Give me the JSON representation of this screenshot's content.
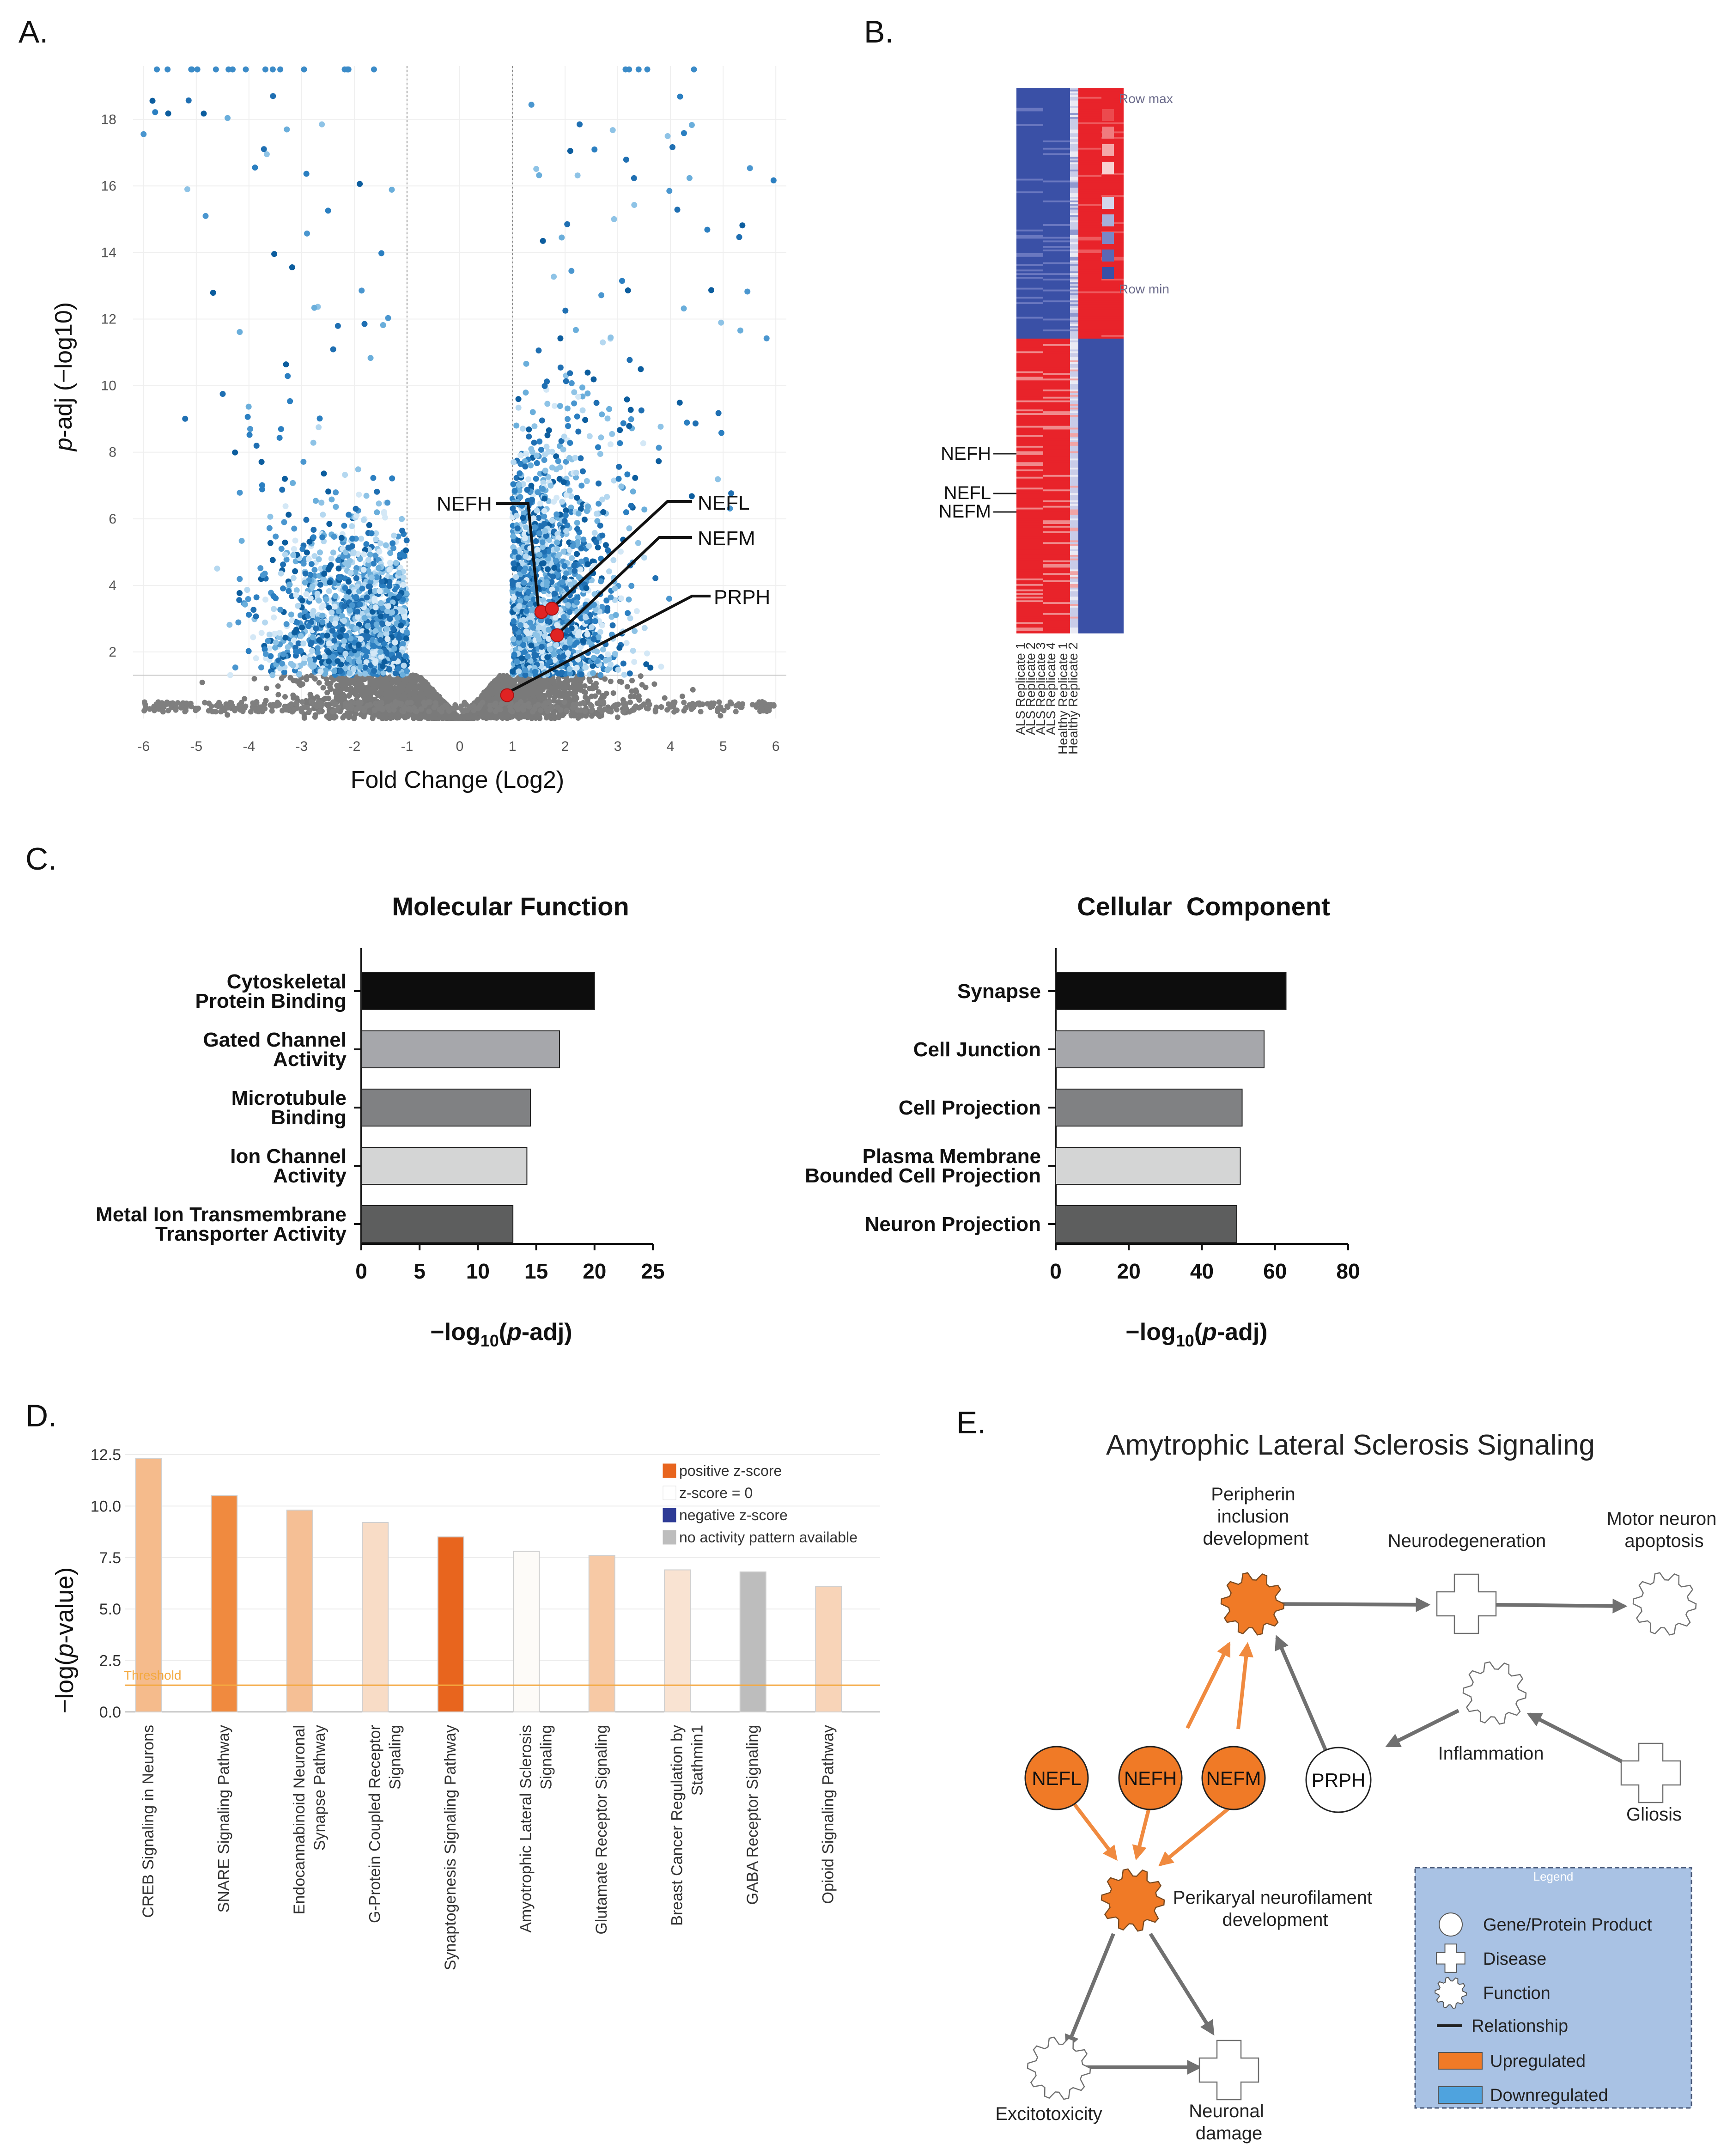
{
  "panel_labels": {
    "a": "A.",
    "b": "B.",
    "c": "C.",
    "d": "D.",
    "e": "E."
  },
  "colors": {
    "orange_dark": "#e8651e",
    "orange_mid": "#f08a3f",
    "orange_light": "#f5bb8c",
    "orange_pale": "#f8d6bb",
    "grey_bar": "#bdbdbd",
    "blue_point": "#2f7dbf",
    "grey_point": "#7a7a7a",
    "red_marker": "#e02323",
    "threshold": "#f4a940",
    "legend_bg": "#a9c2e4",
    "heat_red": "#e8232a",
    "heat_blue": "#3a50a6"
  },
  "chart_data": [
    {
      "id": "A",
      "type": "scatter",
      "title": "",
      "xlabel": "Fold Change (Log2)",
      "ylabel": "p-adj (−log10)",
      "ylabel_italic": "p",
      "ylabel_rest": "-adj (−log10)",
      "xlim": [
        -6.2,
        6.2
      ],
      "ylim": [
        0,
        19.6
      ],
      "xticks": [
        "-6",
        "-5",
        "-4",
        "-3",
        "-2",
        "-1",
        "0",
        "1",
        "2",
        "3",
        "4",
        "5",
        "6"
      ],
      "yticks": [
        "2",
        "4",
        "6",
        "8",
        "10",
        "12",
        "14",
        "16",
        "18"
      ],
      "vlines": [
        -1,
        1
      ],
      "hline": 1.3,
      "highlighted": [
        {
          "gene": "NEFH",
          "x": 1.55,
          "y": 3.2
        },
        {
          "gene": "NEFL",
          "x": 1.75,
          "y": 3.3
        },
        {
          "gene": "NEFM",
          "x": 1.85,
          "y": 2.5
        },
        {
          "gene": "PRPH",
          "x": 0.9,
          "y": 0.7
        }
      ]
    },
    {
      "id": "B",
      "type": "heatmap",
      "columns": [
        "ALS Replicate 1",
        "ALS Replicate 2",
        "ALS Replicate 3",
        "ALS Replicate 4",
        "Healthy Replicate 1",
        "Healthy Replicate 2"
      ],
      "row_labels": [
        "NEFH",
        "NEFL",
        "NEFM"
      ],
      "legend_max": "Row max",
      "legend_min": "Row min",
      "legend_swatches": [
        "#e8232a",
        "#ec4a4e",
        "#f07b7e",
        "#f4a6a8",
        "#f8d0d1",
        "#ffffff",
        "#d3d6ec",
        "#a7aed9",
        "#7b86c6",
        "#5a68b6",
        "#3a50a6"
      ]
    },
    {
      "id": "C1",
      "type": "bar",
      "orientation": "horizontal",
      "title": "Molecular Function",
      "categories": [
        [
          "Cytoskeletal",
          "Protein Binding"
        ],
        [
          "Gated Channel",
          "Activity"
        ],
        [
          "Microtubule",
          "Binding"
        ],
        [
          "Ion Channel",
          "Activity"
        ],
        [
          "Metal Ion Transmembrane",
          "Transporter Activity"
        ]
      ],
      "values": [
        20,
        17,
        14.5,
        14.2,
        13
      ],
      "bar_colors": [
        "#0d0d0d",
        "#a6a7ab",
        "#808183",
        "#d4d5d5",
        "#5d5e5e"
      ],
      "xlim": [
        0,
        25
      ],
      "xticks": [
        "0",
        "5",
        "10",
        "15",
        "20",
        "25"
      ],
      "xlabel_prefix": "−log",
      "xlabel_sub": "10",
      "xlabel_open": "(",
      "xlabel_italic": "p",
      "xlabel_rest": "-adj)"
    },
    {
      "id": "C2",
      "type": "bar",
      "orientation": "horizontal",
      "title": "Cellular  Component",
      "categories": [
        [
          "Synapse"
        ],
        [
          "Cell Junction"
        ],
        [
          "Cell Projection"
        ],
        [
          "Plasma Membrane",
          "Bounded Cell Projection"
        ],
        [
          "Neuron Projection"
        ]
      ],
      "values": [
        63,
        57,
        51,
        50.5,
        49.5
      ],
      "bar_colors": [
        "#0d0d0d",
        "#a6a7ab",
        "#808183",
        "#d4d5d5",
        "#5d5e5e"
      ],
      "xlim": [
        0,
        80
      ],
      "xticks": [
        "0",
        "20",
        "40",
        "60",
        "80"
      ],
      "xlabel_prefix": "−log",
      "xlabel_sub": "10",
      "xlabel_open": "(",
      "xlabel_italic": "p",
      "xlabel_rest": "-adj)"
    },
    {
      "id": "D",
      "type": "bar",
      "title": "",
      "ylabel_prefix": "−log(",
      "ylabel_italic": "p",
      "ylabel_rest": "-value)",
      "ylim": [
        0,
        12.5
      ],
      "yticks": [
        "0.0",
        "2.5",
        "5.0",
        "7.5",
        "10.0",
        "12.5"
      ],
      "threshold": 1.3,
      "threshold_label": "Threshold",
      "categories": [
        [
          "CREB Signaling in Neurons"
        ],
        [
          "SNARE Signaling Pathway"
        ],
        [
          "Endocannabinoid Neuronal",
          "Synapse Pathway"
        ],
        [
          "G-Protein Coupled Receptor",
          "Signaling"
        ],
        [
          "Synaptogenesis Signaling Pathway"
        ],
        [
          "Amyotrophic Lateral Sclerosis",
          "Signaling"
        ],
        [
          "Glutamate Receptor Signaling"
        ],
        [
          "Breast Cancer Regulation by",
          "Stathmin1"
        ],
        [
          "GABA Receptor Signaling"
        ],
        [
          "Opioid Signaling Pathway"
        ]
      ],
      "values": [
        12.3,
        10.5,
        9.8,
        9.2,
        8.5,
        7.8,
        7.6,
        6.9,
        6.8,
        6.1
      ],
      "bar_colors": [
        "#f5bb8c",
        "#f08a3f",
        "#f5bf95",
        "#f8dcc6",
        "#e8651e",
        "#fdfbf8",
        "#f7c9a5",
        "#f9e3d2",
        "#bdbdbd",
        "#f8d4b8"
      ],
      "legend": [
        {
          "label": "positive z-score",
          "color": "#e8651e"
        },
        {
          "label": "z-score = 0",
          "color": "#ffffff"
        },
        {
          "label": "negative z-score",
          "color": "#2e3b96"
        },
        {
          "label": "no activity pattern available",
          "color": "#bdbdbd"
        }
      ]
    }
  ],
  "network": {
    "title": "Amytrophic Lateral Sclerosis Signaling",
    "genes": [
      "NEFL",
      "NEFH",
      "NEFM",
      "PRPH"
    ],
    "labels": {
      "peripherin": [
        "Peripherin",
        "inclusion",
        "development"
      ],
      "neurodegeneration": [
        "Neurodegeneration"
      ],
      "apoptosis": [
        "Motor neuron",
        "apoptosis"
      ],
      "inflammation": [
        "Inflammation"
      ],
      "gliosis": [
        "Gliosis"
      ],
      "perikaryal": [
        "Perikaryal neurofilament",
        "development"
      ],
      "excitotoxicity": [
        "Excitotoxicity"
      ],
      "damage": [
        "Neuronal",
        "damage"
      ]
    },
    "legend": {
      "title": "Legend",
      "items": [
        "Gene/Protein Product",
        "Disease",
        "Function",
        "Relationship",
        "Upregulated",
        "Downregulated"
      ]
    }
  }
}
